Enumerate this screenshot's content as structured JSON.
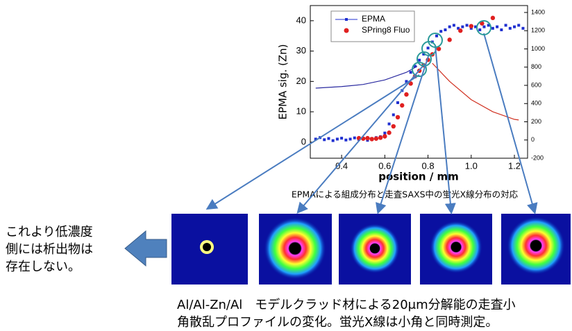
{
  "chart_data": {
    "type": "scatter",
    "ylabel": "EPMA sig. (Zn)",
    "xlabel": "position  /  mm",
    "xlim": [
      0.255,
      1.261
    ],
    "ylim": [
      -5.3,
      45
    ],
    "y2lim": [
      -200,
      1476
    ],
    "xticks": [
      0.4,
      0.6,
      0.8,
      {
        "value": 1,
        "label": "1.0"
      },
      1.2
    ],
    "yticks": [
      0,
      10,
      20,
      30,
      40
    ],
    "y2ticks": [
      -200,
      0,
      200,
      400,
      600,
      800,
      1000,
      1200,
      1400
    ],
    "legend": "top-left",
    "series": [
      {
        "name": "EPMA",
        "color": "#1f2fd0",
        "marker": "square",
        "x": [
          0.28,
          0.3,
          0.32,
          0.34,
          0.36,
          0.38,
          0.4,
          0.42,
          0.44,
          0.46,
          0.48,
          0.5,
          0.52,
          0.54,
          0.56,
          0.58,
          0.6,
          0.62,
          0.64,
          0.66,
          0.68,
          0.7,
          0.72,
          0.74,
          0.76,
          0.78,
          0.8,
          0.82,
          0.84,
          0.86,
          0.88,
          0.9,
          0.92,
          0.94,
          0.96,
          0.98,
          1,
          1.02,
          1.04,
          1.06,
          1.08,
          1.1,
          1.12,
          1.14,
          1.16,
          1.18,
          1.2,
          1.22,
          1.24
        ],
        "values": [
          1,
          1.5,
          0.8,
          1.2,
          0.5,
          1,
          1.3,
          0.7,
          1,
          1.4,
          0.9,
          1.1,
          0.6,
          1.2,
          1.5,
          1.8,
          3,
          6,
          9,
          13,
          17,
          20,
          23,
          25,
          27,
          29,
          31,
          33,
          35,
          36.5,
          37,
          38,
          38.5,
          37.5,
          38,
          38.5,
          37.5,
          38,
          37,
          38,
          38.5,
          37.5,
          38,
          37,
          38.5,
          37.5,
          38,
          38.5,
          37.5
        ]
      },
      {
        "name": "SPring8 Fluo",
        "color": "#e02020",
        "marker": "circle",
        "axis": "y2",
        "x": [
          0.48,
          0.5,
          0.52,
          0.54,
          0.56,
          0.58,
          0.6,
          0.62,
          0.64,
          0.66,
          0.68,
          0.7,
          0.72,
          0.74,
          0.76,
          0.78,
          0.8,
          0.82,
          0.85,
          0.9,
          0.95,
          1,
          1.05,
          1.1
        ],
        "values": [
          20,
          15,
          20,
          10,
          15,
          25,
          40,
          80,
          150,
          250,
          380,
          500,
          620,
          700,
          760,
          820,
          880,
          940,
          1000,
          1100,
          1200,
          1250,
          1280,
          1340
        ]
      },
      {
        "color": "#2a2aa0",
        "mode": "line",
        "x": [
          0.28,
          0.4,
          0.5,
          0.6,
          0.7,
          0.75
        ],
        "values": [
          17.8,
          18.3,
          19,
          20.5,
          23,
          25
        ]
      },
      {
        "color": "#d03020",
        "mode": "line",
        "x": [
          0.82,
          0.9,
          1,
          1.1,
          1.2,
          1.22
        ],
        "values": [
          26,
          20,
          14,
          10,
          7.5,
          7.3
        ]
      }
    ]
  },
  "chart_caption": "EPMAによる組成分布と走査SAXS中の蛍光X線分布の対応",
  "side_note": [
    "これより低濃度",
    "側には析出物は",
    "存在しない。"
  ],
  "caption": [
    "Al/Al-Zn/Al　モデルクラッド材による20μm分解能の走査小",
    "角散乱プロファイルの変化。蛍光X線は小角と同時測定。"
  ]
}
